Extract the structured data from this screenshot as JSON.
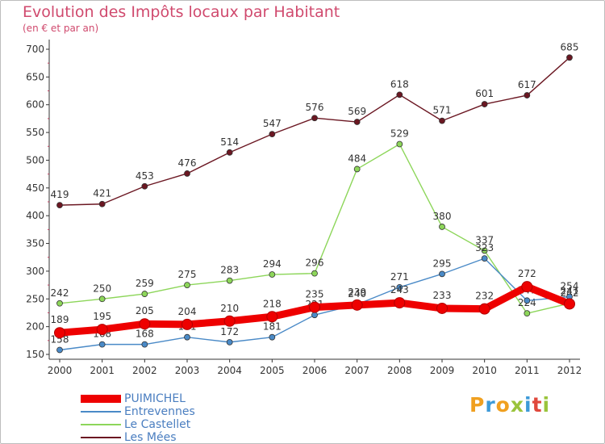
{
  "header": {
    "title": "Evolution des Impôts locaux par Habitant",
    "subtitle": "(en € et par an)"
  },
  "logo": {
    "text": "Proxiti",
    "letters": [
      "P",
      "r",
      "o",
      "x",
      "i",
      "t",
      "i"
    ],
    "colors": [
      "#f0a020",
      "#3d9ad8",
      "#f0a020",
      "#9ac43c",
      "#3d9ad8",
      "#e0483c",
      "#9ac43c"
    ]
  },
  "chart_data": {
    "type": "line",
    "x": [
      "2000",
      "2001",
      "2002",
      "2003",
      "2004",
      "2005",
      "2006",
      "2007",
      "2008",
      "2009",
      "2010",
      "2011",
      "2012"
    ],
    "ylim": [
      140,
      710
    ],
    "yticks": [
      "150",
      "200",
      "250",
      "300",
      "350",
      "400",
      "450",
      "500",
      "550",
      "600",
      "650",
      "700"
    ],
    "grid": false,
    "legend_position": "bottom-left",
    "series": [
      {
        "name": "Les Mées",
        "color": "#6b1722",
        "values": [
          419,
          421,
          453,
          476,
          514,
          547,
          576,
          569,
          618,
          571,
          601,
          617,
          685
        ]
      },
      {
        "name": "Le Castellet",
        "color": "#8dd65a",
        "values": [
          242,
          250,
          259,
          275,
          283,
          294,
          296,
          484,
          529,
          380,
          337,
          224,
          242
        ]
      },
      {
        "name": "Entrevennes",
        "color": "#4a8ac7",
        "values": [
          158,
          168,
          168,
          181,
          172,
          181,
          221,
          240,
          271,
          295,
          323,
          247,
          254
        ]
      },
      {
        "name": "PUIMICHEL",
        "color": "#ee0000",
        "values": [
          189,
          195,
          205,
          204,
          210,
          218,
          235,
          239,
          243,
          233,
          232,
          272,
          241
        ]
      }
    ],
    "legend_order": [
      "PUIMICHEL",
      "Entrevennes",
      "Le Castellet",
      "Les Mées"
    ]
  }
}
